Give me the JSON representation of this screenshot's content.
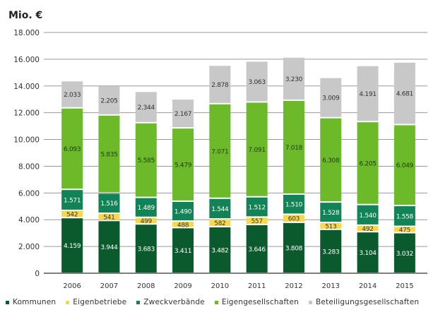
{
  "chart_data": {
    "type": "bar",
    "stacked": true,
    "title": "",
    "ylabel": "Mio. €",
    "xlabel": "",
    "ylim": [
      0,
      18000
    ],
    "yticks": [
      "0",
      "2.000",
      "4.000",
      "6.000",
      "8.000",
      "10.000",
      "12.000",
      "14.000",
      "16.000",
      "18.000"
    ],
    "grid": true,
    "legend_position": "bottom",
    "categories": [
      "2006",
      "2007",
      "2008",
      "2009",
      "2010",
      "2011",
      "2012",
      "2013",
      "2014",
      "2015"
    ],
    "series": [
      {
        "name": "Kommunen",
        "color": "#0b5a2e",
        "label_color": "#ffffff",
        "values": [
          4159,
          3944,
          3683,
          3411,
          3482,
          3646,
          3808,
          3283,
          3104,
          3032
        ],
        "labels": [
          "4.159",
          "3.944",
          "3.683",
          "3.411",
          "3.482",
          "3.646",
          "3.808",
          "3.283",
          "3.104",
          "3.032"
        ]
      },
      {
        "name": "Eigenbetriebe",
        "color": "#f7d84a",
        "label_color": "#333333",
        "values": [
          542,
          541,
          499,
          488,
          582,
          557,
          603,
          513,
          492,
          475
        ],
        "labels": [
          "542",
          "541",
          "499",
          "488",
          "582",
          "557",
          "603",
          "513",
          "492",
          "475"
        ]
      },
      {
        "name": "Zweckverbände",
        "color": "#128357",
        "label_color": "#ffffff",
        "values": [
          1571,
          1516,
          1489,
          1490,
          1544,
          1512,
          1510,
          1528,
          1540,
          1558
        ],
        "labels": [
          "1.571",
          "1.516",
          "1.489",
          "1.490",
          "1.544",
          "1.512",
          "1.510",
          "1.528",
          "1.540",
          "1.558"
        ]
      },
      {
        "name": "Eigengesellschaften",
        "color": "#6cba2a",
        "label_color": "#1f3a10",
        "values": [
          6093,
          5835,
          5585,
          5479,
          7071,
          7091,
          7018,
          6308,
          6205,
          6049
        ],
        "labels": [
          "6.093",
          "5.835",
          "5.585",
          "5.479",
          "7.071",
          "7.091",
          "7.018",
          "6.308",
          "6.205",
          "6.049"
        ]
      },
      {
        "name": "Beteiligungsgesellschaften",
        "color": "#c8c8c8",
        "label_color": "#333333",
        "values": [
          2033,
          2205,
          2344,
          2167,
          2878,
          3063,
          3230,
          3009,
          4191,
          4681
        ],
        "labels": [
          "2.033",
          "2.205",
          "2.344",
          "2.167",
          "2.878",
          "3.063",
          "3.230",
          "3.009",
          "4.191",
          "4.681"
        ]
      }
    ]
  }
}
